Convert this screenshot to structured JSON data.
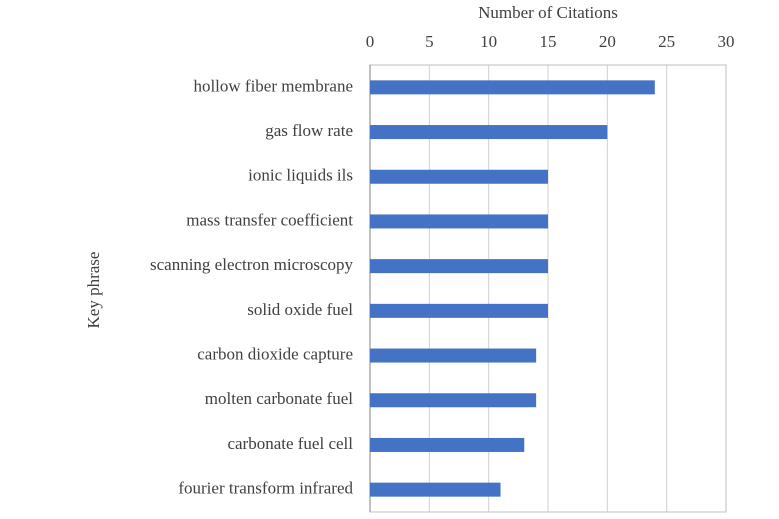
{
  "chart_data": {
    "type": "bar",
    "orientation": "horizontal",
    "x_label": "Number of Citations",
    "y_label": "Key phrase",
    "categories": [
      "hollow fiber membrane",
      "gas flow rate",
      "ionic liquids ils",
      "mass transfer coefficient",
      "scanning electron microscopy",
      "solid oxide fuel",
      "carbon dioxide capture",
      "molten carbonate fuel",
      "carbonate fuel cell",
      "fourier transform infrared"
    ],
    "values": [
      24,
      20,
      15,
      15,
      15,
      15,
      14,
      14,
      13,
      11
    ],
    "color": "#4472c4",
    "xlim": [
      0,
      30
    ],
    "xticks": [
      0,
      5,
      10,
      15,
      20,
      25,
      30
    ],
    "grid": true
  }
}
